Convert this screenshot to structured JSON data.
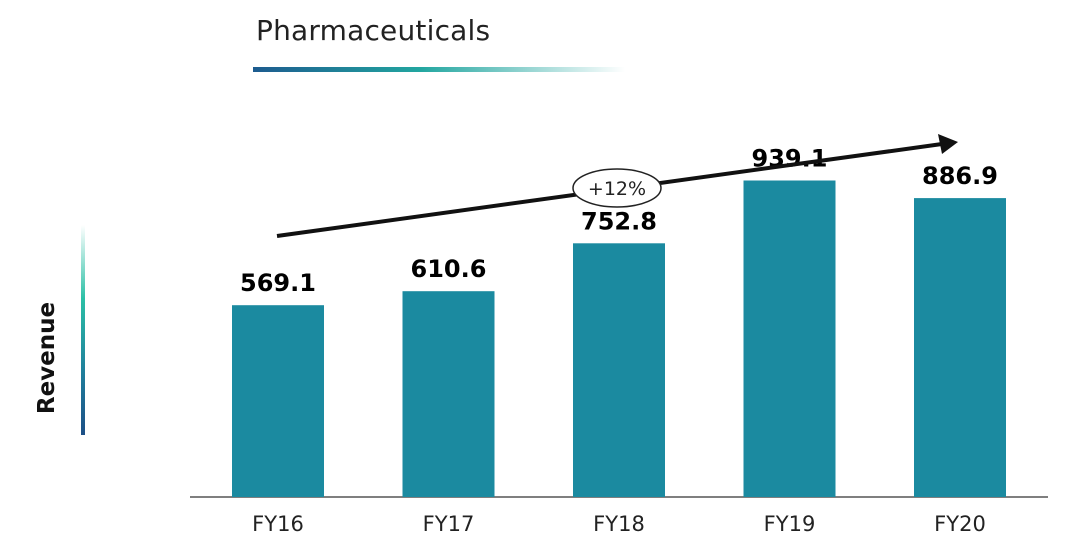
{
  "chart_data": {
    "type": "bar",
    "title": "Pharmaceuticals",
    "ylabel": "Revenue",
    "xlabel": "",
    "categories": [
      "FY16",
      "FY17",
      "FY18",
      "FY19",
      "FY20"
    ],
    "values": [
      569.1,
      610.6,
      752.8,
      939.1,
      886.9
    ],
    "value_labels": [
      "569.1",
      "610.6",
      "752.8",
      "939.1",
      "886.9"
    ],
    "ylim": [
      0,
      1000
    ],
    "grid": false,
    "legend": "none",
    "annotation": {
      "label": "+12%",
      "arrow": "upward trend arrow"
    },
    "colors": {
      "bar": "#1b8aa0"
    }
  }
}
